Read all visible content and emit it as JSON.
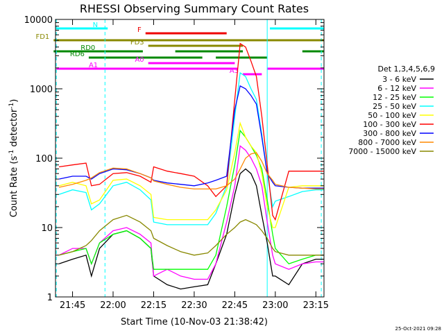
{
  "chart_data": {
    "type": "line",
    "title": "RHESSI Observing Summary Count Rates",
    "xlabel": "Start Time (10-Nov-03 21:38:42)",
    "ylabel": "Count Rate (s",
    "ylabel_sup1": "-1",
    "ylabel_mid": " detector",
    "ylabel_sup2": "-1",
    "ylabel_end": ")",
    "y_scale": "log",
    "ylim": [
      1,
      10000
    ],
    "xlim": [
      "21:38:42",
      "23:18:30"
    ],
    "y_ticks": [
      "1",
      "10",
      "100",
      "1000",
      "10000"
    ],
    "x_ticks": [
      "21:45",
      "22:00",
      "22:15",
      "22:30",
      "22:45",
      "23:00",
      "23:15"
    ],
    "grid": false,
    "legend_title": "Det 1,3,4,5,6,9",
    "legend_position": "right",
    "timestamp": "25-Oct-2021 09:28",
    "series": [
      {
        "name": "3 - 6 keV",
        "color": "#000000",
        "x": [
          "21:40",
          "21:45",
          "21:50",
          "21:52",
          "21:55",
          "22:00",
          "22:05",
          "22:10",
          "22:14",
          "22:15",
          "22:20",
          "22:25",
          "22:30",
          "22:35",
          "22:38",
          "22:42",
          "22:45",
          "22:47",
          "22:49",
          "22:51",
          "22:53",
          "22:55",
          "22:57",
          "22:59",
          "23:00",
          "23:05",
          "23:10",
          "23:15",
          "23:18"
        ],
        "y": [
          3,
          3.5,
          4,
          2,
          5,
          8,
          9,
          7,
          5,
          2,
          1.5,
          1.3,
          1.4,
          1.5,
          3,
          8,
          30,
          60,
          70,
          60,
          40,
          15,
          6,
          2,
          2,
          1.5,
          3,
          3.5,
          3.5
        ]
      },
      {
        "name": "6 - 12 keV",
        "color": "#ff00ff",
        "x": [
          "21:40",
          "21:45",
          "21:50",
          "21:52",
          "21:55",
          "22:00",
          "22:05",
          "22:10",
          "22:14",
          "22:15",
          "22:20",
          "22:25",
          "22:30",
          "22:35",
          "22:38",
          "22:42",
          "22:45",
          "22:47",
          "22:49",
          "22:51",
          "22:53",
          "22:55",
          "22:57",
          "22:59",
          "23:00",
          "23:05",
          "23:10",
          "23:15",
          "23:18"
        ],
        "y": [
          4,
          5,
          5,
          3,
          6,
          9,
          10,
          8,
          6,
          2,
          2.5,
          2,
          1.8,
          1.8,
          3,
          12,
          40,
          150,
          130,
          100,
          70,
          40,
          12,
          4,
          3,
          2.5,
          3,
          3.2,
          3.2
        ]
      },
      {
        "name": "12 - 25 keV",
        "color": "#00ff00",
        "x": [
          "21:40",
          "21:45",
          "21:50",
          "21:52",
          "21:55",
          "22:00",
          "22:05",
          "22:10",
          "22:14",
          "22:15",
          "22:20",
          "22:25",
          "22:30",
          "22:35",
          "22:38",
          "22:42",
          "22:45",
          "22:47",
          "22:49",
          "22:51",
          "22:53",
          "22:55",
          "22:57",
          "22:59",
          "23:00",
          "23:05",
          "23:10",
          "23:15",
          "23:18"
        ],
        "y": [
          4,
          4.5,
          5,
          3,
          6,
          8,
          9,
          7,
          5,
          2.5,
          2.5,
          2.5,
          2.5,
          2.5,
          4,
          20,
          80,
          250,
          200,
          150,
          110,
          70,
          25,
          8,
          5,
          3,
          3.5,
          4,
          4
        ]
      },
      {
        "name": "25 - 50 keV",
        "color": "#00ffff",
        "x": [
          "21:40",
          "21:45",
          "21:50",
          "21:52",
          "21:55",
          "22:00",
          "22:05",
          "22:10",
          "22:14",
          "22:15",
          "22:20",
          "22:25",
          "22:30",
          "22:35",
          "22:38",
          "22:42",
          "22:45",
          "22:47",
          "22:49",
          "22:51",
          "22:53",
          "22:55",
          "22:57",
          "22:59",
          "23:00",
          "23:05",
          "23:10",
          "23:15",
          "23:18"
        ],
        "y": [
          30,
          35,
          32,
          18,
          22,
          40,
          45,
          35,
          25,
          12,
          11,
          11,
          11,
          11,
          16,
          40,
          400,
          1700,
          1500,
          1000,
          700,
          220,
          60,
          20,
          24,
          28,
          33,
          35,
          35
        ]
      },
      {
        "name": "50 - 100 keV",
        "color": "#ffff00",
        "x": [
          "21:40",
          "21:45",
          "21:50",
          "21:52",
          "21:55",
          "22:00",
          "22:05",
          "22:10",
          "22:14",
          "22:15",
          "22:20",
          "22:25",
          "22:30",
          "22:35",
          "22:38",
          "22:42",
          "22:45",
          "22:47",
          "22:49",
          "22:51",
          "22:53",
          "22:55",
          "22:57",
          "22:59",
          "23:00",
          "23:05",
          "23:10",
          "23:15",
          "23:18"
        ],
        "y": [
          40,
          45,
          40,
          22,
          25,
          48,
          50,
          40,
          30,
          14,
          13,
          13,
          13,
          13,
          18,
          35,
          120,
          320,
          200,
          150,
          120,
          60,
          20,
          10,
          10,
          38,
          40,
          40,
          40
        ]
      },
      {
        "name": "100 - 300 keV",
        "color": "#ff0000",
        "x": [
          "21:40",
          "21:45",
          "21:50",
          "21:52",
          "21:55",
          "22:00",
          "22:05",
          "22:10",
          "22:14",
          "22:15",
          "22:20",
          "22:25",
          "22:30",
          "22:35",
          "22:38",
          "22:42",
          "22:45",
          "22:47",
          "22:49",
          "22:51",
          "22:53",
          "22:55",
          "22:57",
          "22:59",
          "23:00",
          "23:05",
          "23:10",
          "23:15",
          "23:18"
        ],
        "y": [
          75,
          80,
          85,
          40,
          42,
          60,
          62,
          55,
          45,
          75,
          65,
          60,
          55,
          40,
          28,
          40,
          700,
          4500,
          4000,
          2500,
          1500,
          400,
          80,
          15,
          13,
          65,
          65,
          65,
          65
        ]
      },
      {
        "name": "300 - 800 keV",
        "color": "#0000ff",
        "x": [
          "21:40",
          "21:45",
          "21:50",
          "21:52",
          "21:55",
          "22:00",
          "22:05",
          "22:10",
          "22:14",
          "22:15",
          "22:20",
          "22:25",
          "22:30",
          "22:35",
          "22:38",
          "22:42",
          "22:45",
          "22:47",
          "22:49",
          "22:51",
          "22:53",
          "22:55",
          "22:57",
          "22:59",
          "23:00",
          "23:05",
          "23:10",
          "23:15",
          "23:18"
        ],
        "y": [
          50,
          55,
          55,
          50,
          60,
          70,
          68,
          60,
          52,
          48,
          44,
          42,
          40,
          44,
          48,
          55,
          500,
          1100,
          1000,
          800,
          600,
          200,
          60,
          45,
          40,
          38,
          37,
          37,
          37
        ]
      },
      {
        "name": "800 - 7000 keV",
        "color": "#ff8800",
        "x": [
          "21:40",
          "21:45",
          "21:50",
          "21:52",
          "21:55",
          "22:00",
          "22:05",
          "22:10",
          "22:14",
          "22:15",
          "22:20",
          "22:25",
          "22:30",
          "22:35",
          "22:38",
          "22:42",
          "22:45",
          "22:47",
          "22:49",
          "22:51",
          "22:53",
          "22:55",
          "22:57",
          "22:59",
          "23:00",
          "23:05",
          "23:10",
          "23:15",
          "23:18"
        ],
        "y": [
          38,
          42,
          48,
          52,
          62,
          72,
          70,
          60,
          52,
          47,
          42,
          38,
          36,
          36,
          36,
          40,
          50,
          70,
          100,
          115,
          120,
          90,
          60,
          48,
          42,
          38,
          37,
          36,
          36
        ]
      },
      {
        "name": "7000 - 15000 keV",
        "color": "#888800",
        "x": [
          "21:40",
          "21:45",
          "21:50",
          "21:52",
          "21:55",
          "22:00",
          "22:05",
          "22:10",
          "22:14",
          "22:15",
          "22:20",
          "22:25",
          "22:30",
          "22:35",
          "22:38",
          "22:42",
          "22:45",
          "22:47",
          "22:49",
          "22:51",
          "22:53",
          "22:55",
          "22:57",
          "22:59",
          "23:00",
          "23:05",
          "23:10",
          "23:15",
          "23:18"
        ],
        "y": [
          4,
          4.5,
          5.5,
          6.5,
          9,
          13,
          15,
          12,
          9,
          7,
          5.5,
          4.5,
          4,
          4.3,
          5.5,
          8,
          10,
          12,
          13,
          12,
          11,
          9,
          7,
          5,
          4.5,
          4,
          4,
          4,
          4
        ]
      }
    ],
    "flags": [
      {
        "label": "N",
        "color": "#00ffff",
        "segments": [
          [
            "21:39",
            "21:58"
          ],
          [
            "22:58",
            "23:18"
          ]
        ],
        "row": 0
      },
      {
        "label": "F",
        "color": "#ee0000",
        "segments": [
          [
            "22:12",
            "22:42"
          ]
        ],
        "row": 1
      },
      {
        "label": "FD1",
        "color": "#888800",
        "segments": [
          [
            "21:38",
            "23:18"
          ]
        ],
        "row": 2
      },
      {
        "label": "FD3",
        "color": "#888800",
        "segments": [
          [
            "22:13",
            "22:48"
          ]
        ],
        "row": 3
      },
      {
        "label": "RD0",
        "color": "#008800",
        "segments": [
          [
            "21:38",
            "22:11"
          ],
          [
            "22:23",
            "22:48"
          ],
          [
            "23:10",
            "23:18"
          ]
        ],
        "row": 4
      },
      {
        "label": "RD6",
        "color": "#008800",
        "segments": [
          [
            "21:51",
            "22:33"
          ],
          [
            "22:38",
            "22:57"
          ]
        ],
        "row": 5
      },
      {
        "label": "A0",
        "color": "#ff00ff",
        "segments": [
          [
            "22:13",
            "22:45"
          ]
        ],
        "row": 6
      },
      {
        "label": "A1",
        "color": "#ff00ff",
        "segments": [
          [
            "21:39",
            "22:46"
          ],
          [
            "22:57",
            "23:18"
          ]
        ],
        "row": 7
      },
      {
        "label": "A3",
        "color": "#ff00ff",
        "segments": [
          [
            "22:48",
            "22:55"
          ]
        ],
        "row": 8
      }
    ],
    "markers": {
      "cyan_dashed": [
        "21:39",
        "21:57",
        "23:17"
      ],
      "cyan_solid": [
        "22:57"
      ]
    }
  }
}
